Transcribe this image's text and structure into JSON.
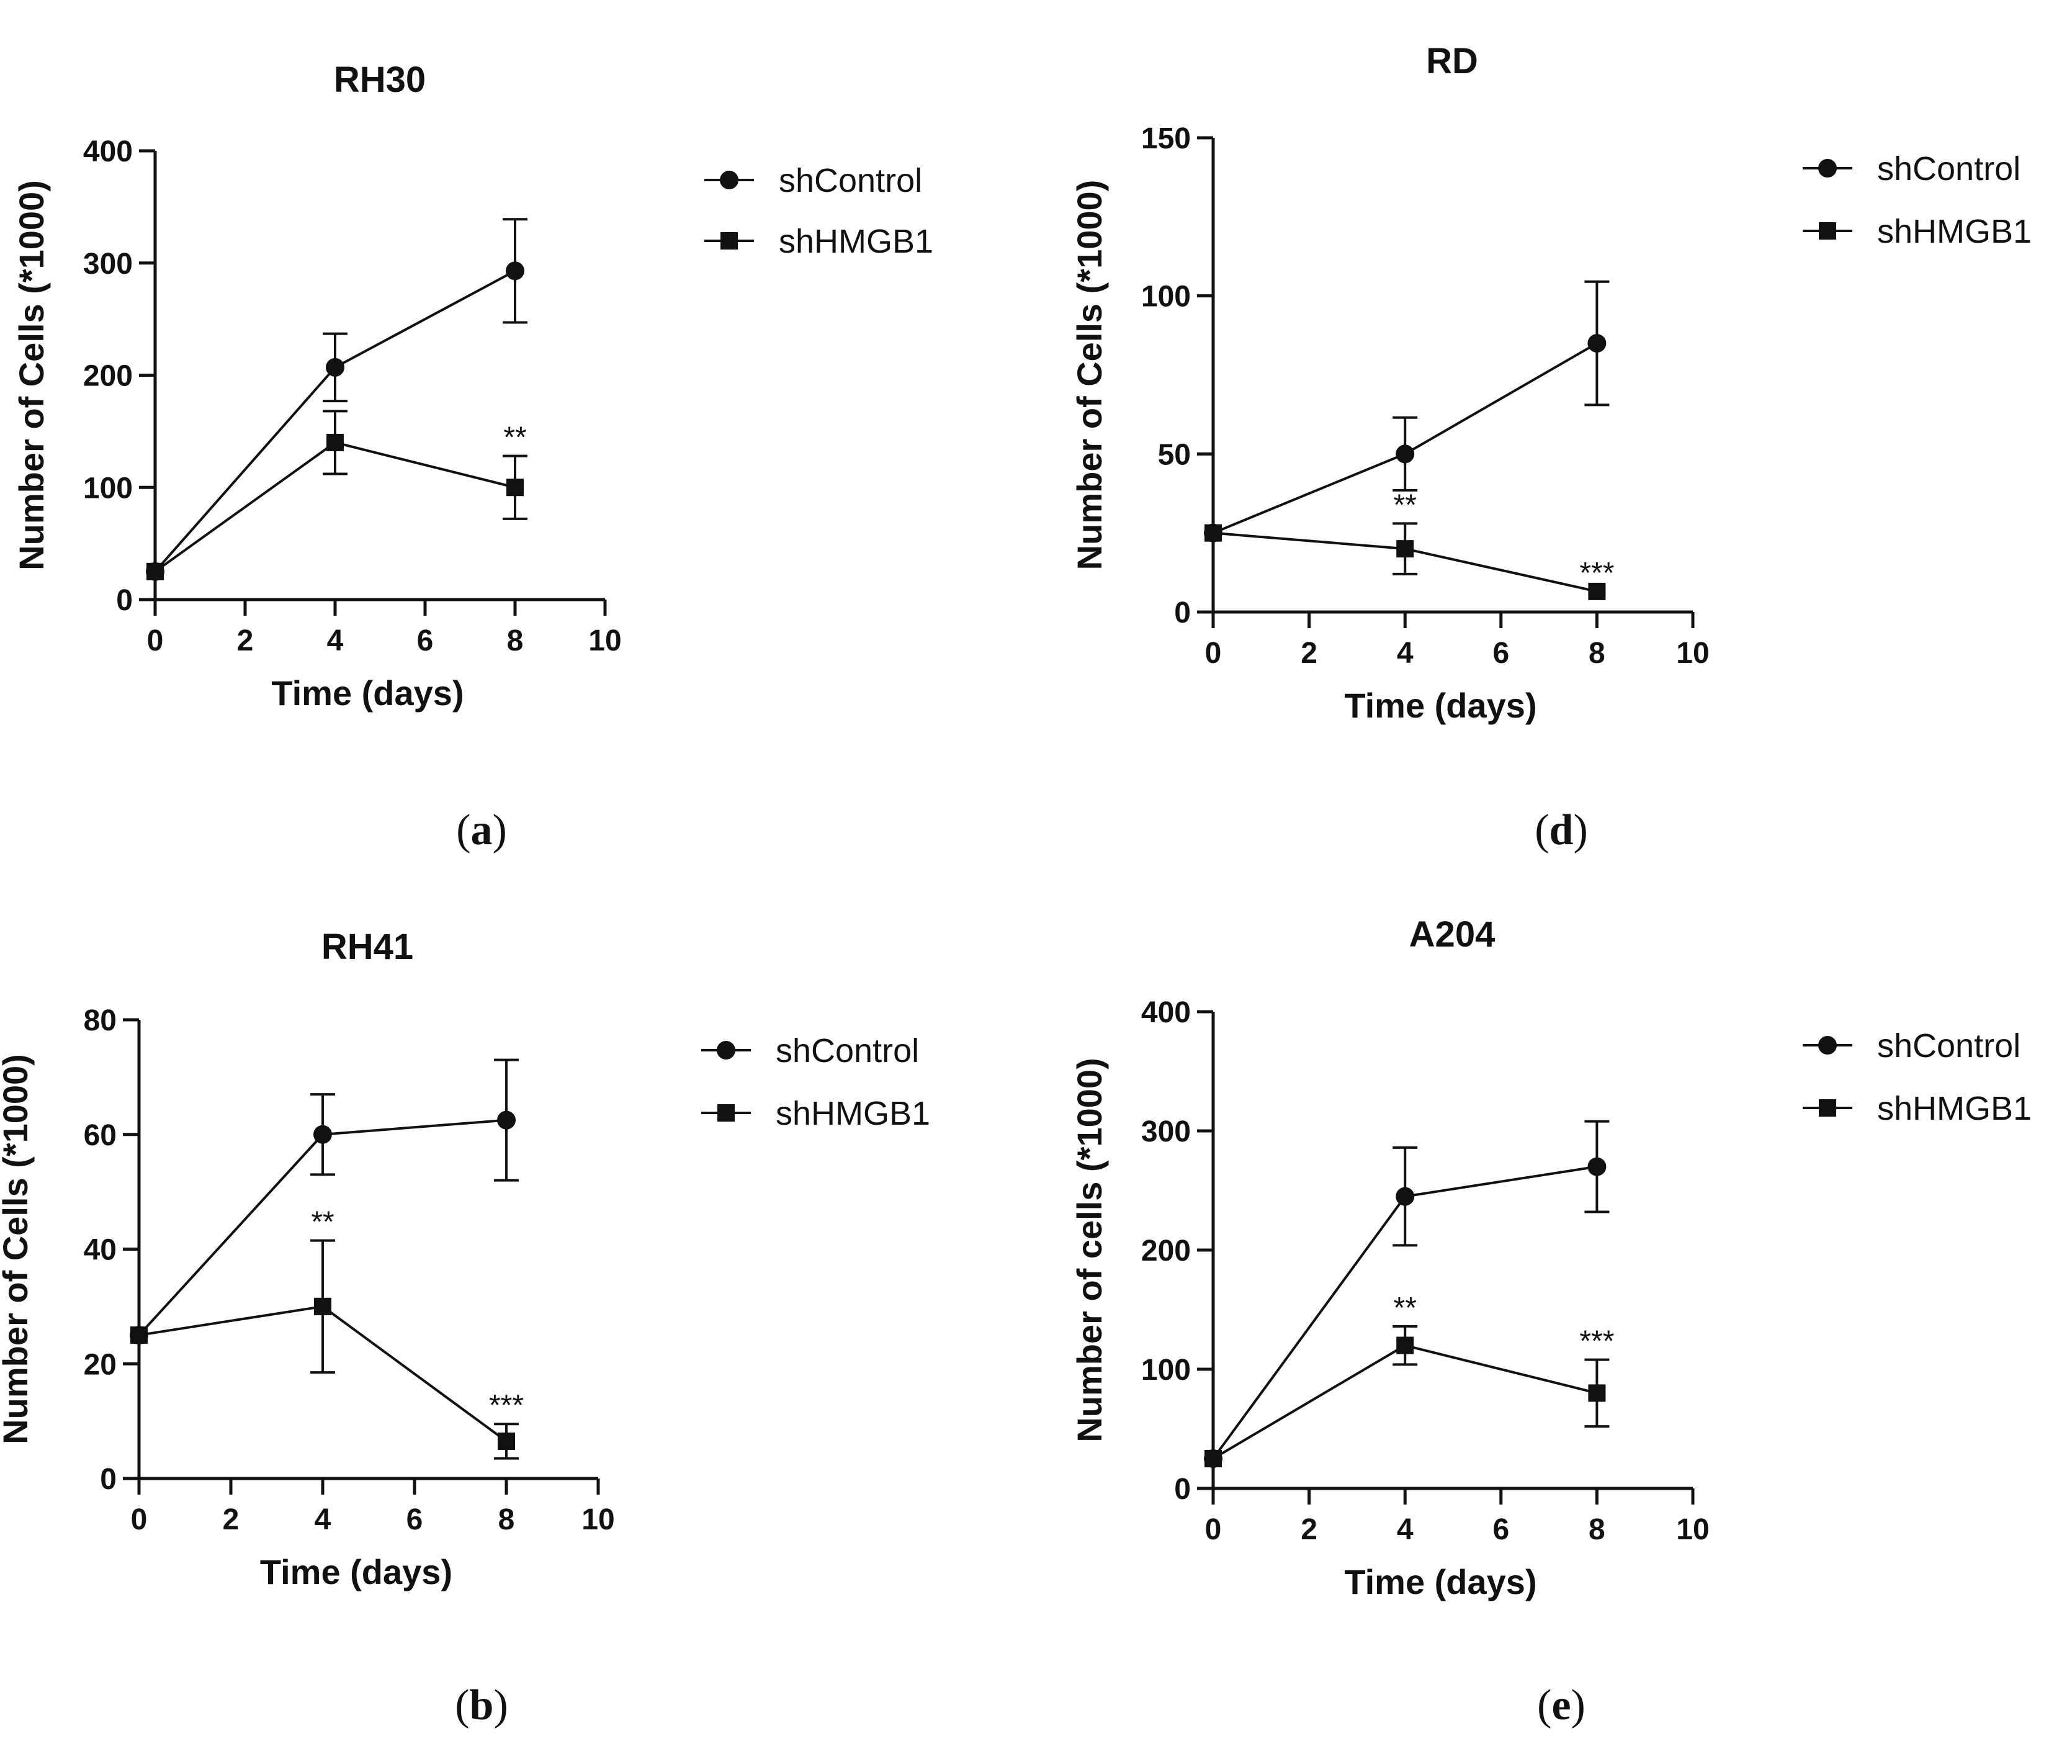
{
  "figure_title": "Cell proliferation time course",
  "chart_data": [
    {
      "panel": "a",
      "panel_label": {
        "open": "(",
        "letter": "a",
        "close": ")"
      },
      "type": "line",
      "title": "RH30",
      "xlabel": "Time (days)",
      "ylabel": "Number of Cells (*1000)",
      "xlim": [
        0,
        10
      ],
      "ylim": [
        0,
        400
      ],
      "xticks": [
        0,
        2,
        4,
        6,
        8,
        10
      ],
      "yticks": [
        0,
        100,
        200,
        300,
        400
      ],
      "x": [
        0,
        4,
        8
      ],
      "series": [
        {
          "name": "shControl",
          "marker": "circle",
          "values": [
            25,
            207,
            293
          ],
          "errors": [
            0,
            30,
            46
          ]
        },
        {
          "name": "shHMGB1",
          "marker": "square",
          "values": [
            25,
            140,
            100
          ],
          "errors": [
            0,
            28,
            28
          ]
        }
      ],
      "annotations": [
        {
          "x": 8,
          "y": 128,
          "text": "**"
        }
      ]
    },
    {
      "panel": "d",
      "panel_label": {
        "open": "(",
        "letter": "d",
        "close": ")"
      },
      "type": "line",
      "title": "RD",
      "xlabel": "Time (days)",
      "ylabel": "Number of  Cells (*1000)",
      "xlim": [
        0,
        10
      ],
      "ylim": [
        0,
        150
      ],
      "xticks": [
        0,
        2,
        4,
        6,
        8,
        10
      ],
      "yticks": [
        0,
        50,
        100,
        150
      ],
      "x": [
        0,
        4,
        8
      ],
      "series": [
        {
          "name": "shControl",
          "marker": "circle",
          "values": [
            25,
            50,
            85
          ],
          "errors": [
            0,
            11.5,
            19.5
          ]
        },
        {
          "name": "shHMGB1",
          "marker": "square",
          "values": [
            25,
            20,
            6.5
          ],
          "errors": [
            0,
            8,
            0
          ]
        }
      ],
      "annotations": [
        {
          "x": 4,
          "y": 28,
          "text": "**"
        },
        {
          "x": 8,
          "y": 6.5,
          "text": "***"
        }
      ]
    },
    {
      "panel": "b",
      "panel_label": {
        "open": "(",
        "letter": "b",
        "close": ")"
      },
      "type": "line",
      "title": "RH41",
      "xlabel": "Time (days)",
      "ylabel": "Number of Cells (*1000)",
      "xlim": [
        0,
        10
      ],
      "ylim": [
        0,
        80
      ],
      "xticks": [
        0,
        2,
        4,
        6,
        8,
        10
      ],
      "yticks": [
        0,
        20,
        40,
        60,
        80
      ],
      "x": [
        0,
        4,
        8
      ],
      "series": [
        {
          "name": "shControl",
          "marker": "circle",
          "values": [
            25,
            60,
            62.5
          ],
          "errors": [
            0,
            7,
            10.5
          ]
        },
        {
          "name": "shHMGB1",
          "marker": "square",
          "values": [
            25,
            30,
            6.5
          ],
          "errors": [
            0,
            11.5,
            3
          ]
        }
      ],
      "annotations": [
        {
          "x": 4,
          "y": 41.5,
          "text": "**"
        },
        {
          "x": 8,
          "y": 9.5,
          "text": "***"
        }
      ]
    },
    {
      "panel": "e",
      "panel_label": {
        "open": "(",
        "letter": "e",
        "close": ")"
      },
      "type": "line",
      "title": "A204",
      "xlabel": "Time (days)",
      "ylabel": "Number of cells (*1000)",
      "xlim": [
        0,
        10
      ],
      "ylim": [
        0,
        400
      ],
      "xticks": [
        0,
        2,
        4,
        6,
        8,
        10
      ],
      "yticks": [
        0,
        100,
        200,
        300,
        400
      ],
      "x": [
        0,
        4,
        8
      ],
      "series": [
        {
          "name": "shControl",
          "marker": "circle",
          "values": [
            25,
            245,
            270
          ],
          "errors": [
            0,
            41,
            38
          ]
        },
        {
          "name": "shHMGB1",
          "marker": "square",
          "values": [
            25,
            120,
            80
          ],
          "errors": [
            0,
            16,
            28
          ]
        }
      ],
      "annotations": [
        {
          "x": 4,
          "y": 136,
          "text": "**"
        },
        {
          "x": 8,
          "y": 108,
          "text": "***"
        }
      ]
    }
  ],
  "colors": {
    "ink": "#111111",
    "background": "#ffffff"
  }
}
